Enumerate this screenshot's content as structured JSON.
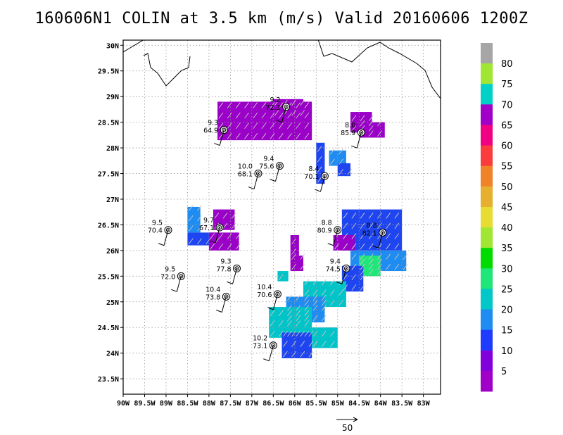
{
  "title": "160606N1 COLIN at 3.5 km (m/s) Valid 20160606 1200Z",
  "map": {
    "lat_labels": [
      "30N",
      "29.5N",
      "29N",
      "28.5N",
      "28N",
      "27.5N",
      "27N",
      "26.5N",
      "26N",
      "25.5N",
      "25N",
      "24.5N",
      "24N",
      "23.5N"
    ],
    "lat_values": [
      30,
      29.5,
      29,
      28.5,
      28,
      27.5,
      27,
      26.5,
      26,
      25.5,
      25,
      24.5,
      24,
      23.5
    ],
    "lon_labels": [
      "90W",
      "89.5W",
      "89W",
      "88.5W",
      "88W",
      "87.5W",
      "87W",
      "86.5W",
      "86W",
      "85.5W",
      "85W",
      "84.5W",
      "84W",
      "83.5W",
      "83W"
    ],
    "lon_values": [
      -90,
      -89.5,
      -89,
      -88.5,
      -88,
      -87.5,
      -87,
      -86.5,
      -86,
      -85.5,
      -85,
      -84.5,
      -84,
      -83.5,
      -83
    ],
    "lon_range": [
      -90,
      -82.6
    ],
    "lat_range": [
      23.2,
      30.1
    ],
    "gridlines": true
  },
  "colorbar": {
    "labels": [
      "80",
      "75",
      "70",
      "65",
      "60",
      "55",
      "50",
      "45",
      "40",
      "35",
      "30",
      "25",
      "20",
      "15",
      "10",
      "5"
    ],
    "colors": [
      "#a6a6a6",
      "#a0e632",
      "#00d2c8",
      "#a000c8",
      "#f00082",
      "#fa3c3c",
      "#f08228",
      "#e6af2d",
      "#e6dc32",
      "#a0e632",
      "#00dc00",
      "#1ee678",
      "#00c8c8",
      "#1e8cf0",
      "#1e3cff",
      "#8200dc",
      "#a000c8"
    ]
  },
  "stations": [
    {
      "speed": "9.2",
      "pressure": "72.3",
      "lon": -86.2,
      "lat": 28.8
    },
    {
      "speed": "9.3",
      "pressure": "64.9",
      "lon": -87.65,
      "lat": 28.35
    },
    {
      "speed": "8.0",
      "pressure": "85.9",
      "lon": -84.45,
      "lat": 28.3
    },
    {
      "speed": "9.4",
      "pressure": "75.6",
      "lon": -86.35,
      "lat": 27.65
    },
    {
      "speed": "10.0",
      "pressure": "68.1",
      "lon": -86.85,
      "lat": 27.5
    },
    {
      "speed": "8.4",
      "pressure": "70.1",
      "lon": -85.3,
      "lat": 27.45
    },
    {
      "speed": "9.5",
      "pressure": "70.4",
      "lon": -88.95,
      "lat": 26.4
    },
    {
      "speed": "9.7",
      "pressure": "67.1",
      "lon": -87.75,
      "lat": 26.45
    },
    {
      "speed": "8.8",
      "pressure": "80.9",
      "lon": -85.0,
      "lat": 26.4
    },
    {
      "speed": "8.8",
      "pressure": "82.1",
      "lon": -83.95,
      "lat": 26.35
    },
    {
      "speed": "9.3",
      "pressure": "77.8",
      "lon": -87.35,
      "lat": 25.65
    },
    {
      "speed": "9.4",
      "pressure": "74.5",
      "lon": -84.8,
      "lat": 25.65
    },
    {
      "speed": "9.5",
      "pressure": "72.0",
      "lon": -88.65,
      "lat": 25.5
    },
    {
      "speed": "10.4",
      "pressure": "73.8",
      "lon": -87.6,
      "lat": 25.1
    },
    {
      "speed": "10.4",
      "pressure": "70.6",
      "lon": -86.4,
      "lat": 25.15
    },
    {
      "speed": "10.2",
      "pressure": "73.1",
      "lon": -86.5,
      "lat": 24.15
    }
  ],
  "reference_vector": {
    "label": "50"
  }
}
